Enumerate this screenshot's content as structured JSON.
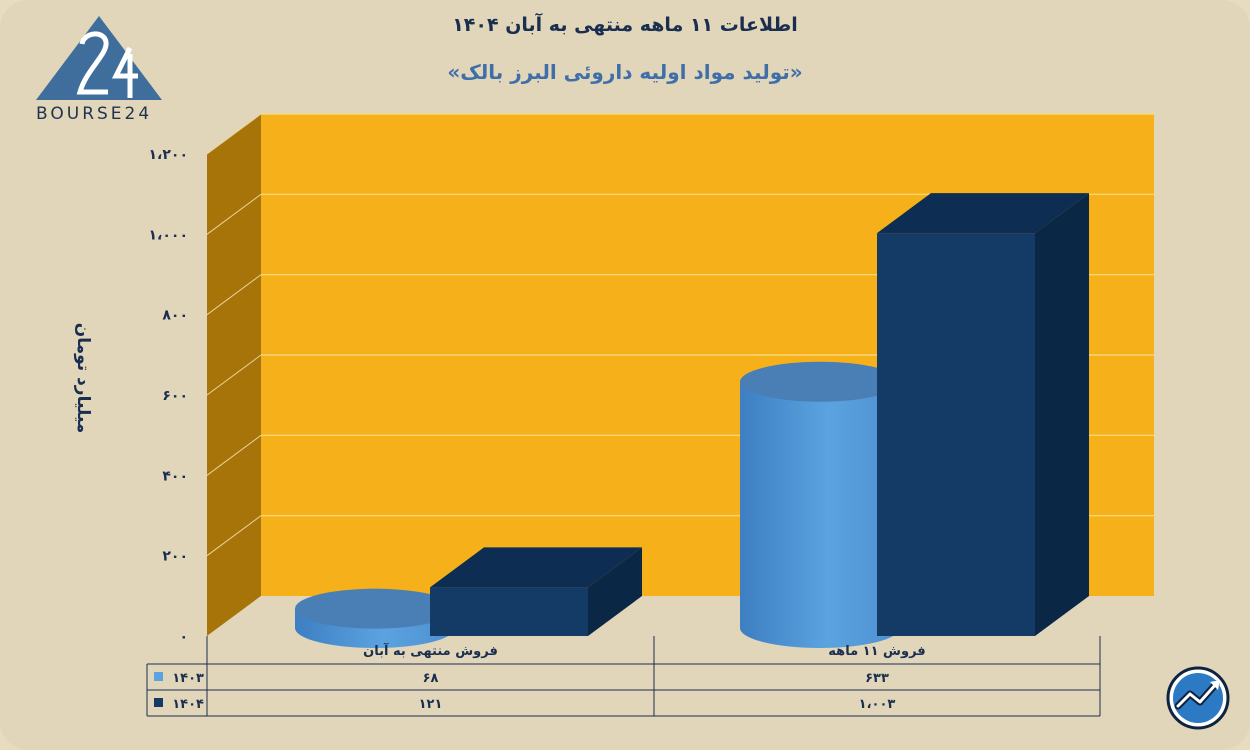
{
  "header": {
    "title": "اطلاعات ۱۱ ماهه منتهی به آبان ۱۴۰۴",
    "subtitle": "«تولید مواد اولیه داروئی البرز بالک»"
  },
  "brand": {
    "logo_text": "BOURSE24"
  },
  "colors": {
    "series_1403": "#5ba3e0",
    "series_1404": "#143a66",
    "wall": "#f6b11a",
    "side_wall": "#a77409"
  },
  "chart_data": {
    "type": "bar",
    "categories": [
      "فروش ۱۱ ماهه",
      "فروش منتهی به  آبان"
    ],
    "series": [
      {
        "name": "۱۴۰۳",
        "values": [
          633,
          68
        ],
        "labels": [
          "۶۳۳",
          "۶۸"
        ],
        "shape": "cylinder"
      },
      {
        "name": "۱۴۰۴",
        "values": [
          1003,
          121
        ],
        "labels": [
          "۱،۰۰۳",
          "۱۲۱"
        ],
        "shape": "box"
      }
    ],
    "ylabel": "میلیارد تومان",
    "ylim": [
      0,
      1200
    ],
    "yticks": [
      0,
      200,
      400,
      600,
      800,
      1000,
      1200
    ],
    "ytick_labels": [
      "۰",
      "۲۰۰",
      "۴۰۰",
      "۶۰۰",
      "۸۰۰",
      "۱،۰۰۰",
      "۱،۲۰۰"
    ],
    "grid": true,
    "legend": "data-table-bottom"
  }
}
